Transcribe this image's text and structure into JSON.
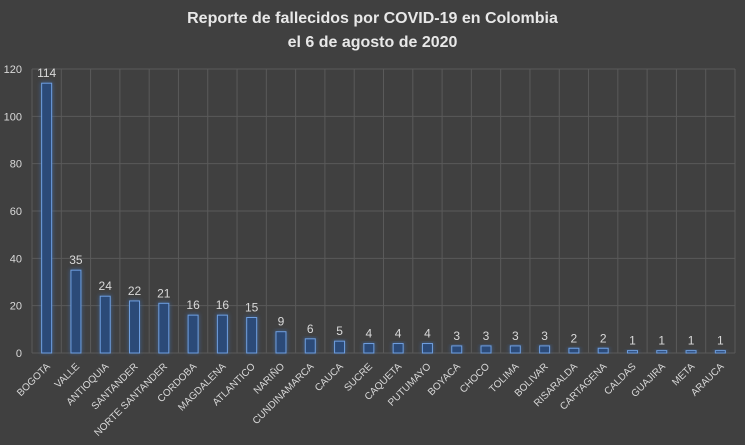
{
  "chart_data": {
    "type": "bar",
    "title": [
      "Reporte de fallecidos por COVID-19 en Colombia",
      "el 6 de agosto de 2020"
    ],
    "xlabel": "",
    "ylabel": "",
    "ylim": [
      0,
      120
    ],
    "yticks": [
      0,
      20,
      40,
      60,
      80,
      100,
      120
    ],
    "grid": true,
    "categories": [
      "BOGOTA",
      "VALLE",
      "ANTIOQUIA",
      "SANTANDER",
      "NORTE SANTANDER",
      "CORDOBA",
      "MAGDALENA",
      "ATLANTICO",
      "NARIÑO",
      "CUNDINAMARCA",
      "CAUCA",
      "SUCRE",
      "CAQUETA",
      "PUTUMAYO",
      "BOYACA",
      "CHOCO",
      "TOLIMA",
      "BOLIVAR",
      "RISARALDA",
      "CARTAGENA",
      "CALDAS",
      "GUAJIRA",
      "META",
      "ARAUCA"
    ],
    "values": [
      114,
      35,
      24,
      22,
      21,
      16,
      16,
      15,
      9,
      6,
      5,
      4,
      4,
      4,
      3,
      3,
      3,
      3,
      2,
      2,
      1,
      1,
      1,
      1
    ],
    "colors": {
      "bar_fill": "#2b4a78",
      "bar_edge": "#6f9fe0",
      "background": "#404040",
      "grid": "#5a5a5a",
      "text": "#d9d9d9"
    }
  }
}
